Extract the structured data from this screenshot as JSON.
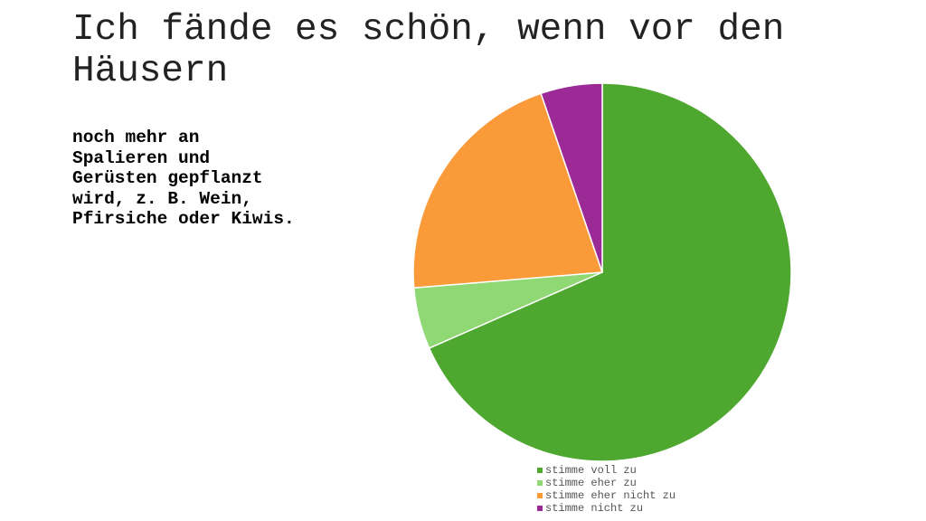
{
  "chart_data": {
    "type": "pie",
    "title_lines": [
      "Ich fände es schön, wenn vor den",
      "Häusern"
    ],
    "subtitle_lines": [
      "noch mehr an",
      "Spalieren und",
      "Gerüsten gepflanzt",
      "wird, z. B. Wein,",
      "Pfirsiche oder Kiwis."
    ],
    "categories": [
      "stimme voll zu",
      "stimme eher zu",
      "stimme eher nicht zu",
      "stimme nicht zu"
    ],
    "values": [
      13,
      1,
      4,
      1
    ],
    "colors": [
      "#4ea72e",
      "#8fd873",
      "#fb9a38",
      "#9c2a96"
    ]
  }
}
